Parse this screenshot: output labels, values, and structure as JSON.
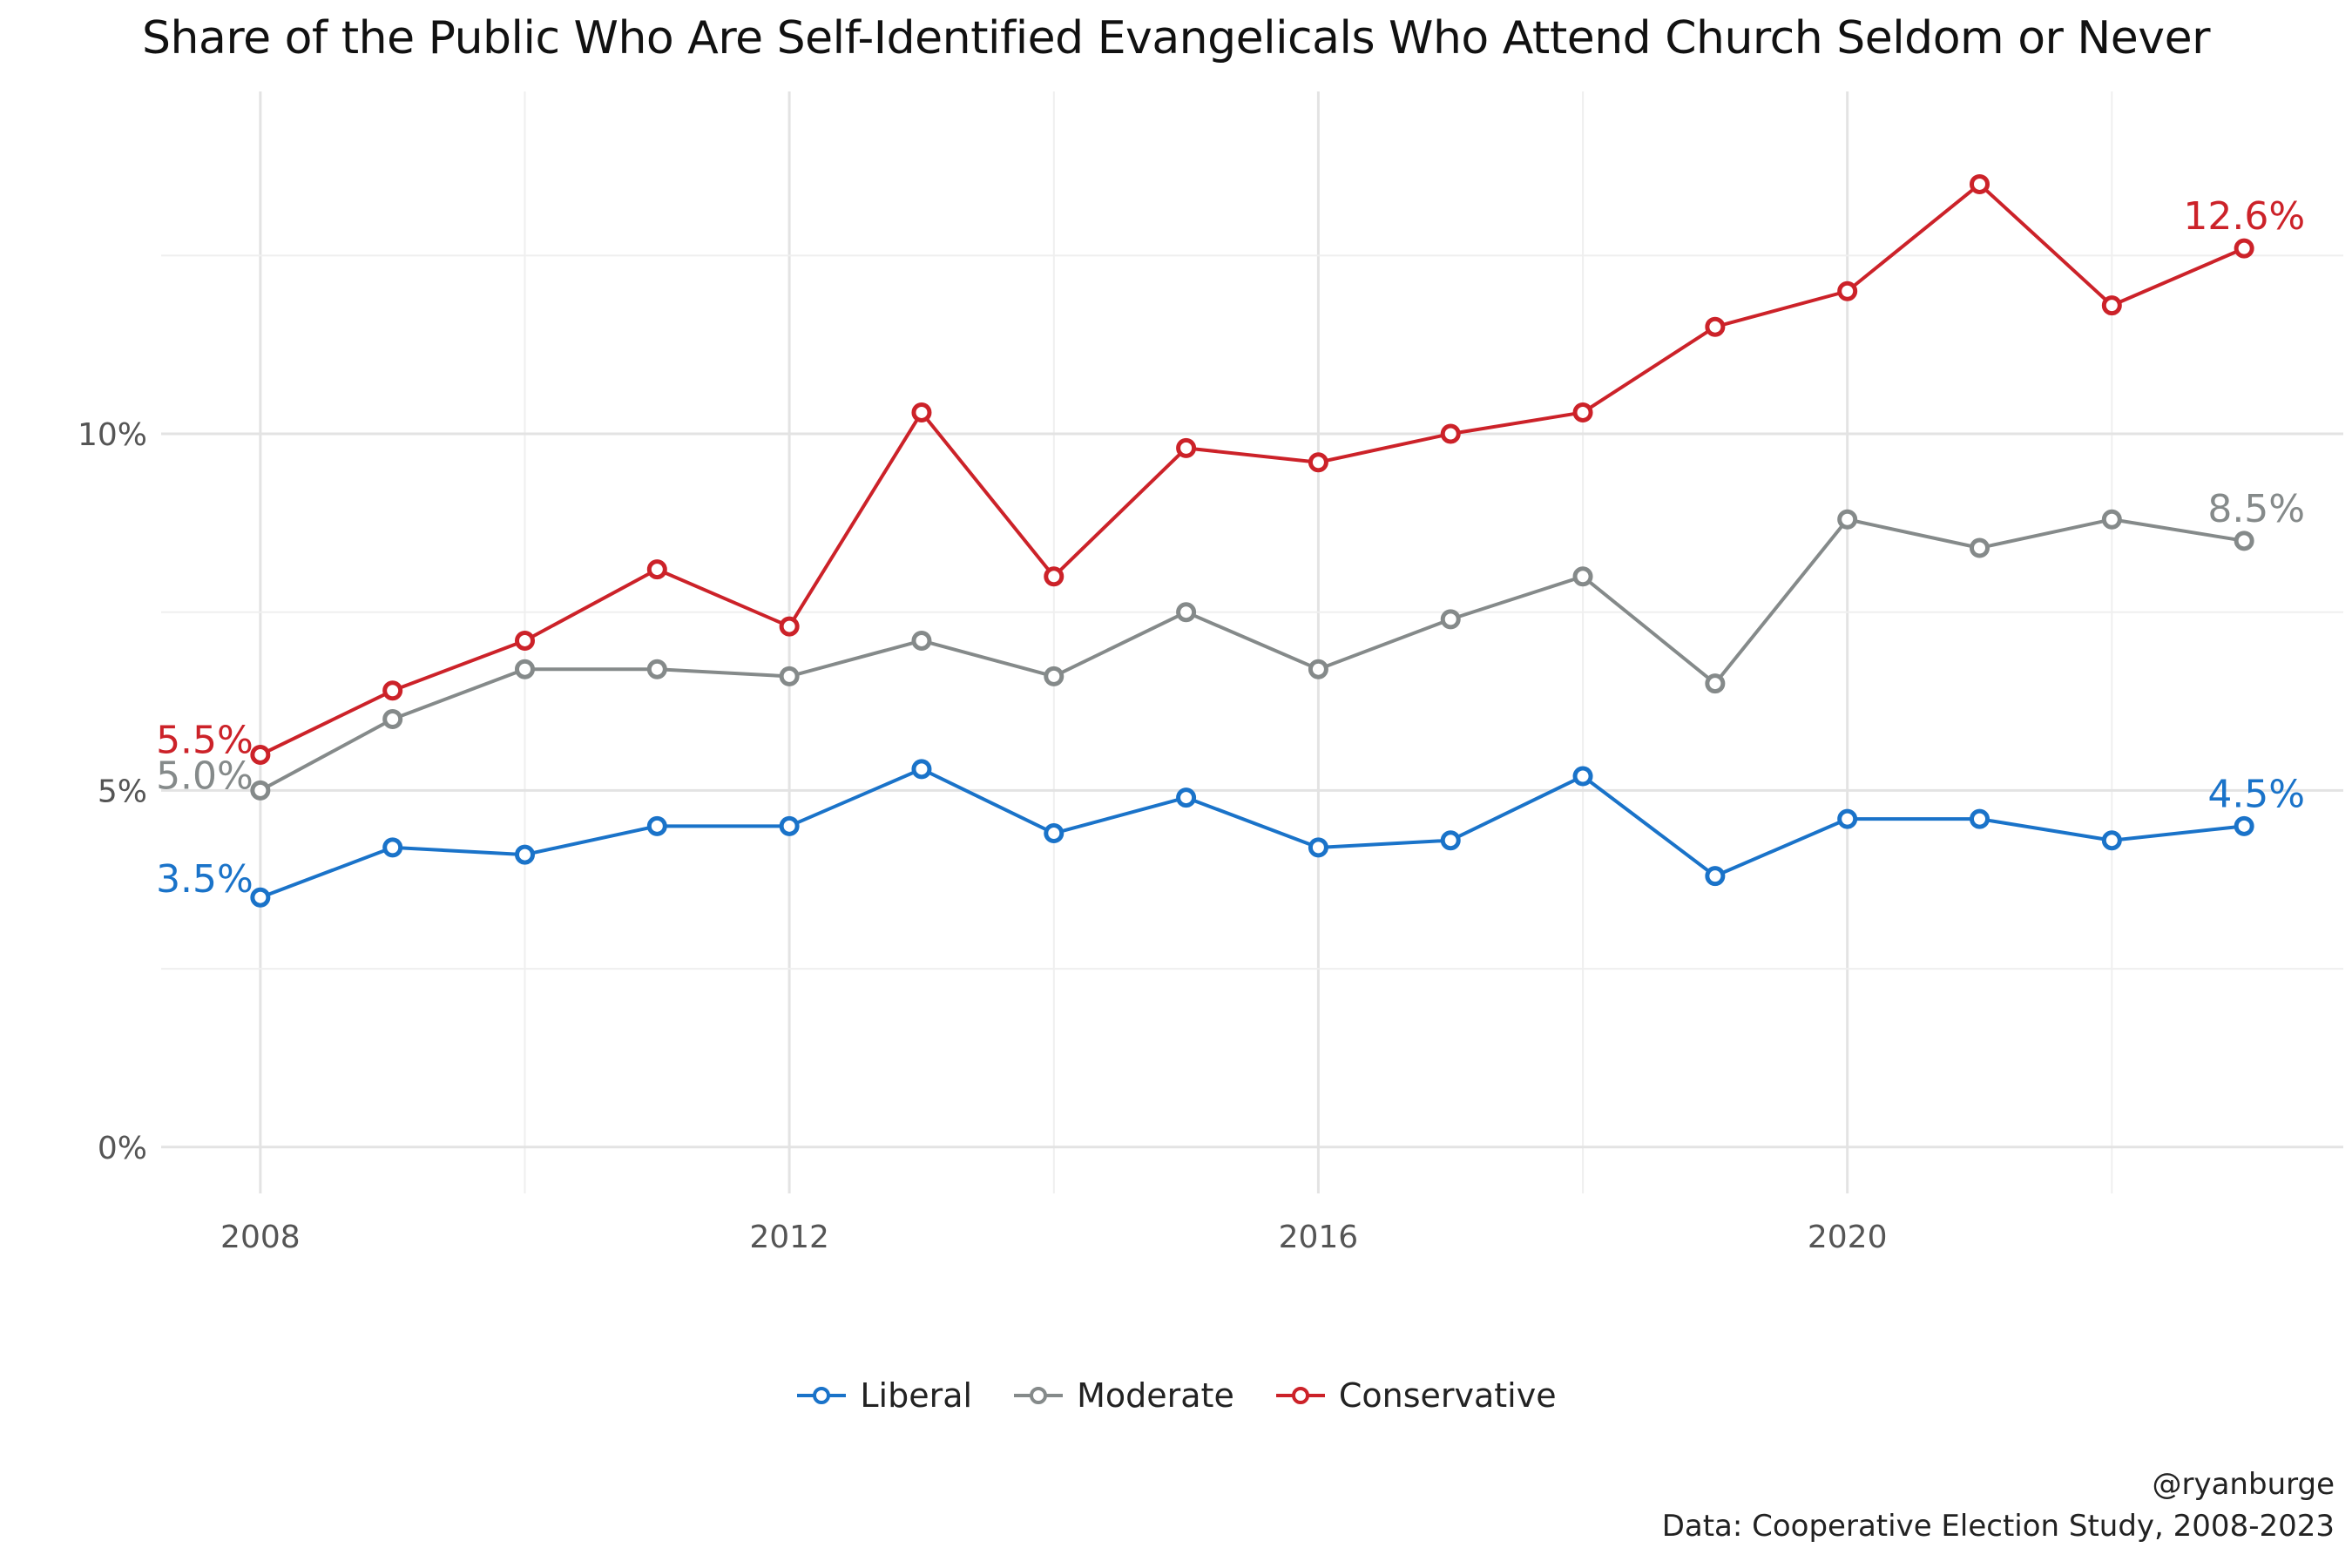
{
  "chart_data": {
    "type": "line",
    "title": "Share of the Public Who Are Self-Identified Evangelicals Who Attend Church Seldom or Never",
    "xlabel": "",
    "ylabel": "",
    "x": [
      2008,
      2009,
      2010,
      2011,
      2012,
      2013,
      2014,
      2015,
      2016,
      2017,
      2018,
      2019,
      2020,
      2021,
      2022,
      2023
    ],
    "xlim": [
      2007.25,
      2023.75
    ],
    "ylim": [
      -0.65,
      14.8
    ],
    "x_ticks": [
      {
        "value": 2008,
        "label": "2008"
      },
      {
        "value": 2012,
        "label": "2012"
      },
      {
        "value": 2016,
        "label": "2016"
      },
      {
        "value": 2020,
        "label": "2020"
      }
    ],
    "y_ticks": [
      {
        "value": 0,
        "label": "0%"
      },
      {
        "value": 5,
        "label": "5%"
      },
      {
        "value": 10,
        "label": "10%"
      }
    ],
    "grid": true,
    "legend_position": "bottom",
    "series": [
      {
        "name": "Liberal",
        "color": "#1a73c9",
        "values": [
          3.5,
          4.2,
          4.1,
          4.5,
          4.5,
          5.3,
          4.4,
          4.9,
          4.2,
          4.3,
          5.2,
          3.8,
          4.6,
          4.6,
          4.3,
          4.5
        ],
        "start_label": "3.5%",
        "end_label": "4.5%"
      },
      {
        "name": "Moderate",
        "color": "#858a8a",
        "values": [
          5.0,
          6.0,
          6.7,
          6.7,
          6.6,
          7.1,
          6.6,
          7.5,
          6.7,
          7.4,
          8.0,
          6.5,
          8.8,
          8.4,
          8.8,
          8.5
        ],
        "start_label": "5.0%",
        "end_label": "8.5%"
      },
      {
        "name": "Conservative",
        "color": "#cc2229",
        "values": [
          5.5,
          6.4,
          7.1,
          8.1,
          7.3,
          10.3,
          8.0,
          9.8,
          9.6,
          10.0,
          10.3,
          11.5,
          12.0,
          13.5,
          11.8,
          12.6
        ],
        "start_label": "5.5%",
        "end_label": "12.6%"
      }
    ]
  },
  "caption": {
    "author": "@ryanburge",
    "source": "Data: Cooperative Election Study, 2008-2023"
  }
}
